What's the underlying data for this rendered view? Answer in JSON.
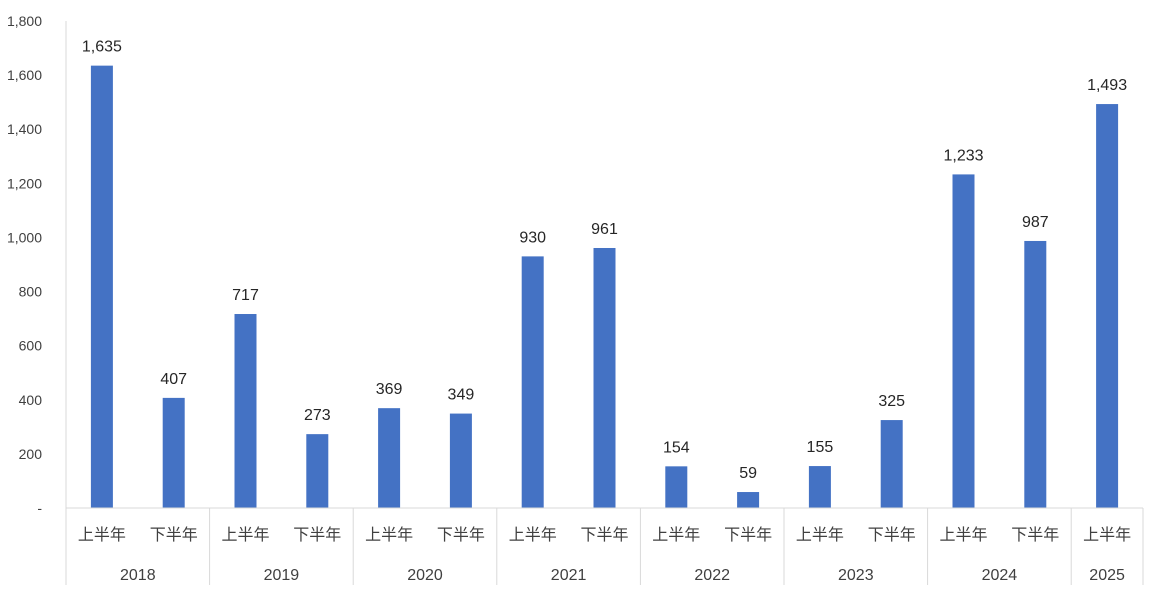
{
  "chart_data": {
    "type": "bar",
    "categories": [
      "上半年",
      "下半年",
      "上半年",
      "下半年",
      "上半年",
      "下半年",
      "上半年",
      "下半年",
      "上半年",
      "下半年",
      "上半年",
      "下半年",
      "上半年",
      "下半年",
      "上半年"
    ],
    "groups": [
      {
        "label": "2018",
        "count": 2
      },
      {
        "label": "2019",
        "count": 2
      },
      {
        "label": "2020",
        "count": 2
      },
      {
        "label": "2021",
        "count": 2
      },
      {
        "label": "2022",
        "count": 2
      },
      {
        "label": "2023",
        "count": 2
      },
      {
        "label": "2024",
        "count": 2
      },
      {
        "label": "2025",
        "count": 1
      }
    ],
    "values": [
      1635,
      407,
      717,
      273,
      369,
      349,
      930,
      961,
      154,
      59,
      155,
      325,
      1233,
      987,
      1493
    ],
    "data_labels": [
      "1,635",
      "407",
      "717",
      "273",
      "369",
      "349",
      "930",
      "961",
      "154",
      "59",
      "155",
      "325",
      "1,233",
      "987",
      "1,493"
    ],
    "ylim": [
      0,
      1800
    ],
    "yticks": [
      {
        "value": 0,
        "label": "-"
      },
      {
        "value": 200,
        "label": "200"
      },
      {
        "value": 400,
        "label": "400"
      },
      {
        "value": 600,
        "label": "600"
      },
      {
        "value": 800,
        "label": "800"
      },
      {
        "value": 1000,
        "label": "1,000"
      },
      {
        "value": 1200,
        "label": "1,200"
      },
      {
        "value": 1400,
        "label": "1,400"
      },
      {
        "value": 1600,
        "label": "1,600"
      },
      {
        "value": 1800,
        "label": "1,800"
      }
    ],
    "grid": false,
    "bar_color": "#4472C4",
    "axis_color": "#D9D9D9"
  }
}
